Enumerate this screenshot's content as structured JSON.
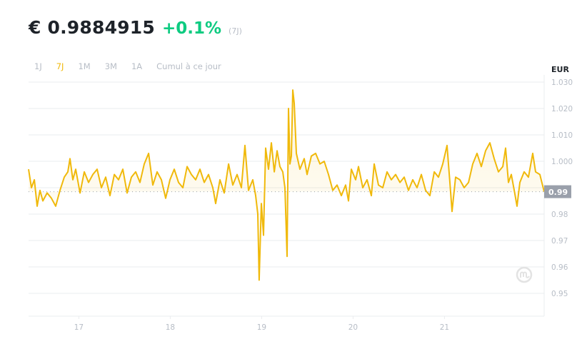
{
  "header": {
    "price": "€ 0.9884915",
    "change": "+0.1%",
    "change_color": "#0ecb81",
    "period": "(7J)"
  },
  "tabs": [
    {
      "label": "1J",
      "active": false
    },
    {
      "label": "7J",
      "active": true
    },
    {
      "label": "1M",
      "active": false
    },
    {
      "label": "3M",
      "active": false
    },
    {
      "label": "1A",
      "active": false
    },
    {
      "label": "Cumul à ce jour",
      "active": false
    }
  ],
  "accent_color": "#f0b90b",
  "watermark_icon": "coinmarketcap-logo-icon",
  "chart_data": {
    "type": "area",
    "unit_label": "EUR",
    "current_value_label": "0.99",
    "current_value": 0.9884915,
    "ylim": [
      0.942,
      1.031
    ],
    "y_ticks": [
      "1.030",
      "1.020",
      "1.010",
      "1.000",
      "0.99",
      "0.98",
      "0.97",
      "0.96",
      "0.95"
    ],
    "y_tick_values": [
      1.03,
      1.02,
      1.01,
      1.0,
      0.99,
      0.98,
      0.97,
      0.96,
      0.95
    ],
    "xlim": [
      16.45,
      22.09
    ],
    "x_ticks": [
      "17",
      "18",
      "19",
      "20",
      "21"
    ],
    "x_tick_values": [
      17,
      18,
      19,
      20,
      21
    ],
    "grid": true,
    "series": [
      {
        "points": [
          [
            16.45,
            0.997
          ],
          [
            16.481,
            0.99
          ],
          [
            16.513,
            0.993
          ],
          [
            16.544,
            0.983
          ],
          [
            16.575,
            0.989
          ],
          [
            16.606,
            0.985
          ],
          [
            16.653,
            0.988
          ],
          [
            16.7,
            0.986
          ],
          [
            16.747,
            0.983
          ],
          [
            16.794,
            0.989
          ],
          [
            16.841,
            0.994
          ],
          [
            16.88,
            0.996
          ],
          [
            16.903,
            1.001
          ],
          [
            16.934,
            0.993
          ],
          [
            16.966,
            0.997
          ],
          [
            17.013,
            0.988
          ],
          [
            17.059,
            0.996
          ],
          [
            17.106,
            0.992
          ],
          [
            17.153,
            0.995
          ],
          [
            17.2,
            0.997
          ],
          [
            17.247,
            0.99
          ],
          [
            17.294,
            0.994
          ],
          [
            17.341,
            0.987
          ],
          [
            17.388,
            0.995
          ],
          [
            17.434,
            0.993
          ],
          [
            17.481,
            0.997
          ],
          [
            17.528,
            0.988
          ],
          [
            17.575,
            0.994
          ],
          [
            17.622,
            0.996
          ],
          [
            17.669,
            0.992
          ],
          [
            17.716,
            0.999
          ],
          [
            17.763,
            1.003
          ],
          [
            17.809,
            0.991
          ],
          [
            17.856,
            0.996
          ],
          [
            17.903,
            0.993
          ],
          [
            17.95,
            0.986
          ],
          [
            17.997,
            0.993
          ],
          [
            18.044,
            0.997
          ],
          [
            18.091,
            0.992
          ],
          [
            18.138,
            0.99
          ],
          [
            18.184,
            0.998
          ],
          [
            18.231,
            0.995
          ],
          [
            18.278,
            0.993
          ],
          [
            18.325,
            0.997
          ],
          [
            18.372,
            0.992
          ],
          [
            18.419,
            0.995
          ],
          [
            18.466,
            0.99
          ],
          [
            18.497,
            0.984
          ],
          [
            18.544,
            0.993
          ],
          [
            18.591,
            0.988
          ],
          [
            18.638,
            0.999
          ],
          [
            18.684,
            0.991
          ],
          [
            18.731,
            0.995
          ],
          [
            18.778,
            0.99
          ],
          [
            18.817,
            1.006
          ],
          [
            18.856,
            0.989
          ],
          [
            18.903,
            0.993
          ],
          [
            18.934,
            0.987
          ],
          [
            18.958,
            0.98
          ],
          [
            18.973,
            0.955
          ],
          [
            18.997,
            0.984
          ],
          [
            19.02,
            0.972
          ],
          [
            19.044,
            1.005
          ],
          [
            19.075,
            0.997
          ],
          [
            19.106,
            1.007
          ],
          [
            19.138,
            0.996
          ],
          [
            19.169,
            1.004
          ],
          [
            19.2,
            0.998
          ],
          [
            19.231,
            0.996
          ],
          [
            19.255,
            0.99
          ],
          [
            19.278,
            0.964
          ],
          [
            19.294,
            1.02
          ],
          [
            19.309,
            0.999
          ],
          [
            19.325,
            1.002
          ],
          [
            19.341,
            1.027
          ],
          [
            19.356,
            1.022
          ],
          [
            19.38,
            1.003
          ],
          [
            19.419,
            0.997
          ],
          [
            19.466,
            1.001
          ],
          [
            19.497,
            0.995
          ],
          [
            19.544,
            1.002
          ],
          [
            19.591,
            1.003
          ],
          [
            19.638,
            0.999
          ],
          [
            19.684,
            1.0
          ],
          [
            19.731,
            0.995
          ],
          [
            19.778,
            0.989
          ],
          [
            19.825,
            0.991
          ],
          [
            19.872,
            0.987
          ],
          [
            19.919,
            0.991
          ],
          [
            19.95,
            0.985
          ],
          [
            19.981,
            0.997
          ],
          [
            20.028,
            0.993
          ],
          [
            20.059,
            0.998
          ],
          [
            20.106,
            0.99
          ],
          [
            20.153,
            0.993
          ],
          [
            20.2,
            0.987
          ],
          [
            20.231,
            0.999
          ],
          [
            20.278,
            0.991
          ],
          [
            20.325,
            0.99
          ],
          [
            20.372,
            0.996
          ],
          [
            20.419,
            0.993
          ],
          [
            20.466,
            0.995
          ],
          [
            20.513,
            0.992
          ],
          [
            20.559,
            0.994
          ],
          [
            20.606,
            0.989
          ],
          [
            20.653,
            0.993
          ],
          [
            20.7,
            0.99
          ],
          [
            20.747,
            0.995
          ],
          [
            20.794,
            0.989
          ],
          [
            20.841,
            0.987
          ],
          [
            20.888,
            0.996
          ],
          [
            20.934,
            0.994
          ],
          [
            20.981,
            0.999
          ],
          [
            21.028,
            1.006
          ],
          [
            21.059,
            0.992
          ],
          [
            21.083,
            0.981
          ],
          [
            21.122,
            0.994
          ],
          [
            21.169,
            0.993
          ],
          [
            21.216,
            0.99
          ],
          [
            21.263,
            0.992
          ],
          [
            21.309,
            0.999
          ],
          [
            21.356,
            1.003
          ],
          [
            21.403,
            0.998
          ],
          [
            21.45,
            1.004
          ],
          [
            21.497,
            1.007
          ],
          [
            21.544,
            1.001
          ],
          [
            21.591,
            0.996
          ],
          [
            21.638,
            0.998
          ],
          [
            21.669,
            1.005
          ],
          [
            21.7,
            0.992
          ],
          [
            21.731,
            0.995
          ],
          [
            21.763,
            0.989
          ],
          [
            21.794,
            0.983
          ],
          [
            21.825,
            0.992
          ],
          [
            21.872,
            0.996
          ],
          [
            21.919,
            0.994
          ],
          [
            21.966,
            1.003
          ],
          [
            21.997,
            0.996
          ],
          [
            22.044,
            0.995
          ],
          [
            22.091,
            0.9885
          ]
        ]
      }
    ]
  }
}
